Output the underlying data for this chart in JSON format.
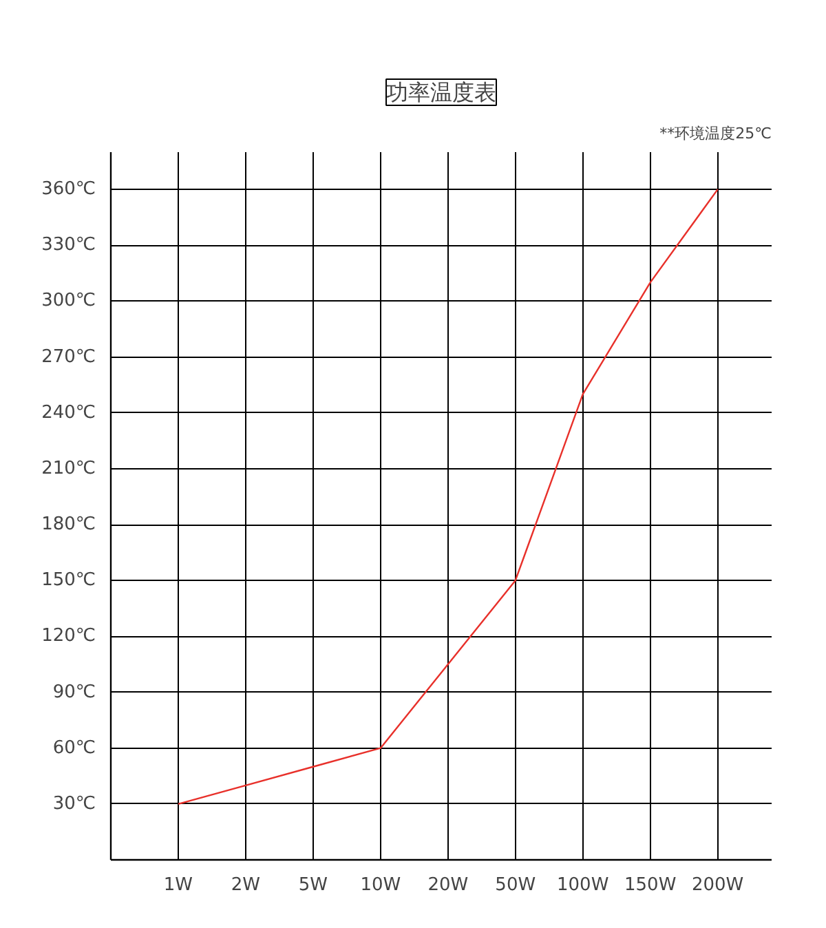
{
  "chart_data": {
    "type": "line",
    "title": "功率温度表",
    "annotations": [
      "**环境温度25℃"
    ],
    "categories": [
      "1W",
      "2W",
      "5W",
      "10W",
      "20W",
      "50W",
      "100W",
      "150W",
      "200W"
    ],
    "series": [
      {
        "color": "#e8302a",
        "values": [
          30,
          40,
          50,
          60,
          105,
          150,
          250,
          310,
          360
        ]
      }
    ],
    "ylim": [
      0,
      380
    ],
    "yticks": [
      {
        "value": 30,
        "label": "30℃"
      },
      {
        "value": 60,
        "label": "60℃"
      },
      {
        "value": 90,
        "label": "90℃"
      },
      {
        "value": 120,
        "label": "120℃"
      },
      {
        "value": 150,
        "label": "150℃"
      },
      {
        "value": 180,
        "label": "180℃"
      },
      {
        "value": 210,
        "label": "210℃"
      },
      {
        "value": 240,
        "label": "240℃"
      },
      {
        "value": 270,
        "label": "270℃"
      },
      {
        "value": 300,
        "label": "300℃"
      },
      {
        "value": 330,
        "label": "330℃"
      },
      {
        "value": 360,
        "label": "360℃"
      }
    ],
    "grid": true,
    "marker": "none",
    "line_style": "solid"
  }
}
